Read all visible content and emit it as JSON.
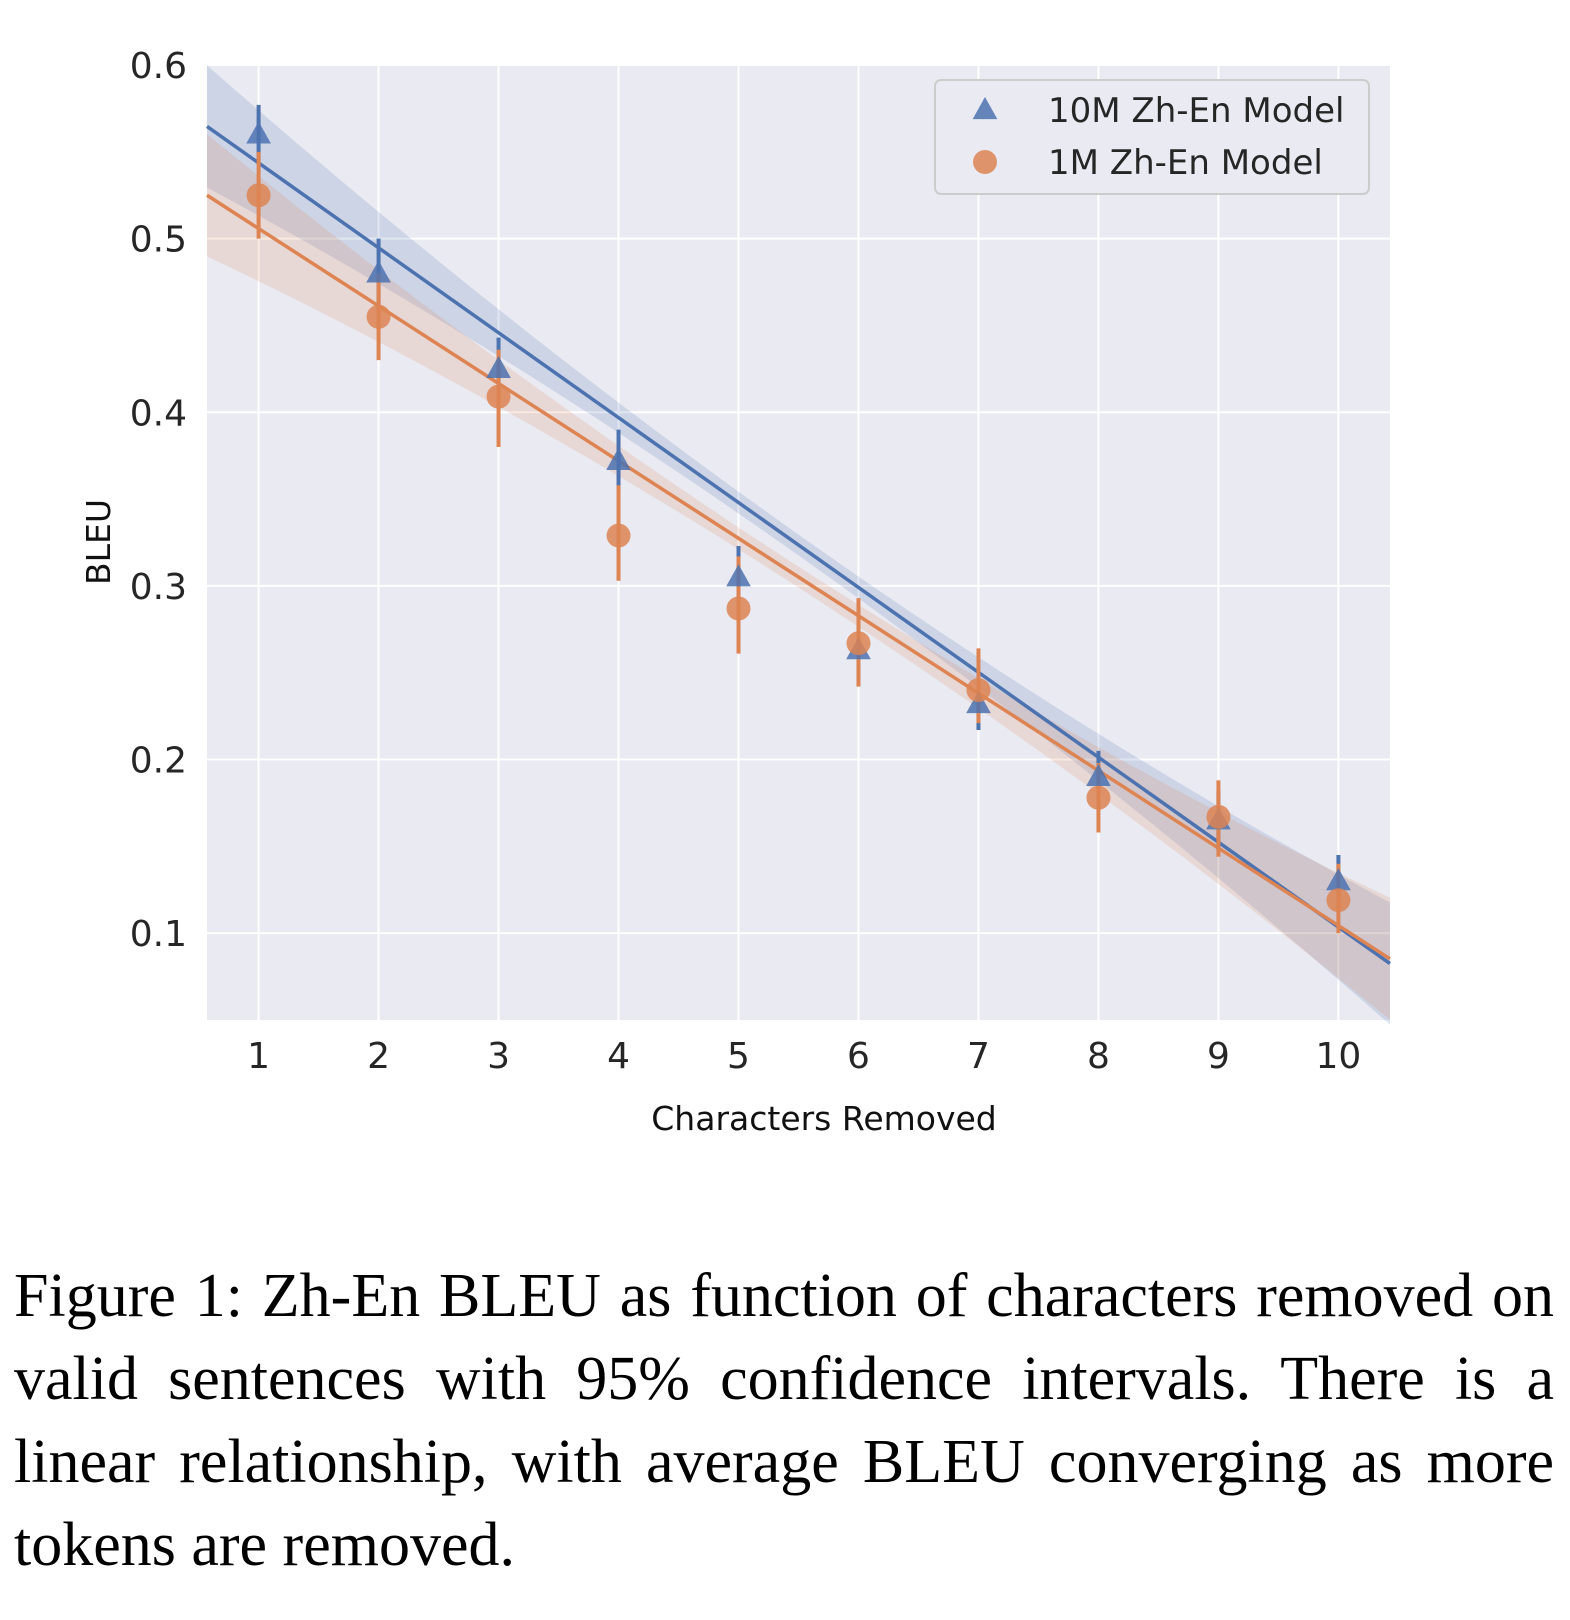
{
  "chart_data": {
    "type": "scatter",
    "xlabel": "Characters Removed",
    "ylabel": "BLEU",
    "x": [
      1,
      2,
      3,
      4,
      5,
      6,
      7,
      8,
      9,
      10
    ],
    "xlim": [
      0.57,
      10.43
    ],
    "ylim": [
      0.05,
      0.6
    ],
    "xticks": [
      "1",
      "2",
      "3",
      "4",
      "5",
      "6",
      "7",
      "8",
      "9",
      "10"
    ],
    "yticks": [
      "0.1",
      "0.2",
      "0.3",
      "0.4",
      "0.5",
      "0.6"
    ],
    "ytick_values": [
      0.1,
      0.2,
      0.3,
      0.4,
      0.5,
      0.6
    ],
    "grid": true,
    "legend_position": "top-right",
    "series": [
      {
        "name": "10M Zh-En Model",
        "marker": "triangle",
        "color": "#4c72b0",
        "values": [
          0.56,
          0.48,
          0.425,
          0.372,
          0.305,
          0.263,
          0.232,
          0.19,
          0.165,
          0.13
        ],
        "ci_low": [
          0.545,
          0.46,
          0.408,
          0.355,
          0.288,
          0.245,
          0.217,
          0.172,
          0.148,
          0.113
        ],
        "ci_high": [
          0.577,
          0.5,
          0.443,
          0.39,
          0.323,
          0.281,
          0.248,
          0.205,
          0.182,
          0.145
        ],
        "fit": {
          "intercept": 0.5925,
          "slope": -0.0489
        }
      },
      {
        "name": "1M Zh-En Model",
        "marker": "circle",
        "color": "#dd8452",
        "values": [
          0.525,
          0.455,
          0.409,
          0.329,
          0.287,
          0.267,
          0.24,
          0.178,
          0.167,
          0.119
        ],
        "ci_low": [
          0.5,
          0.43,
          0.38,
          0.303,
          0.261,
          0.242,
          0.221,
          0.158,
          0.144,
          0.1
        ],
        "ci_high": [
          0.55,
          0.48,
          0.436,
          0.358,
          0.317,
          0.293,
          0.264,
          0.198,
          0.188,
          0.14
        ],
        "fit": {
          "intercept": 0.5504,
          "slope": -0.0446
        }
      }
    ]
  },
  "caption": {
    "label": "Figure 1:",
    "part1": "Zh-En",
    "sc1": "BLEU",
    "part2": "as function of characters removed on valid sentences with 95% confidence intervals. There is a linear relationship, with average",
    "sc2": "BLEU",
    "part3": "converging as more tokens are removed."
  },
  "colors": {
    "plot_background": "#eaeaf2",
    "grid": "#ffffff"
  }
}
